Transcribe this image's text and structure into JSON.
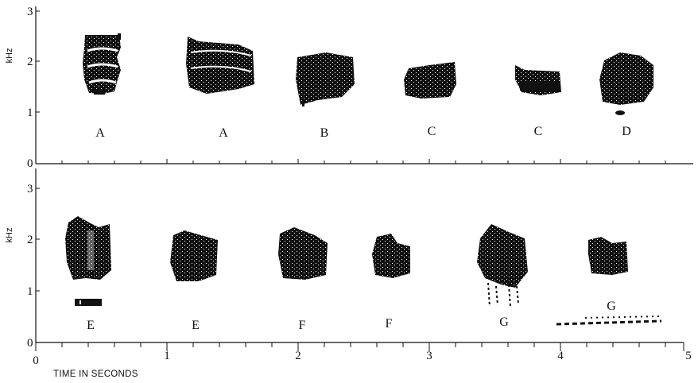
{
  "y_unit": "kHz",
  "x_title": "TIME IN SECONDS",
  "top_panel": {
    "y_ticks": [
      "0",
      "1",
      "2",
      "3"
    ],
    "labels": [
      "A",
      "A",
      "B",
      "C",
      "C",
      "D"
    ]
  },
  "bottom_panel": {
    "y_ticks": [
      "0",
      "1",
      "2",
      "3"
    ],
    "labels": [
      "E",
      "E",
      "F",
      "F",
      "G",
      "G"
    ]
  },
  "x_ticks": [
    "0",
    "1",
    "2",
    "3",
    "4",
    "5"
  ],
  "ink_color": "#111111"
}
